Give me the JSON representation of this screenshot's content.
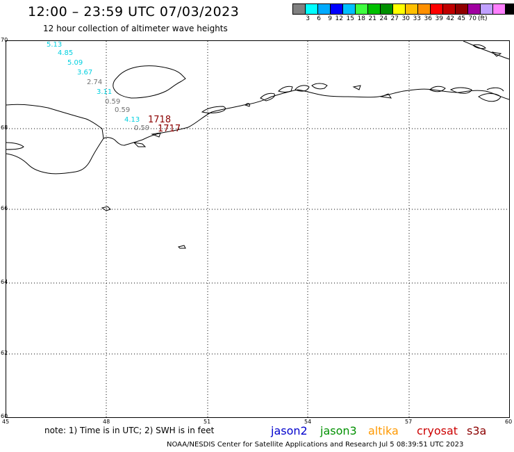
{
  "header": {
    "title": "12:00 – 23:59 UTC 07/03/2023",
    "subtitle": "12 hour collection of altimeter wave heights"
  },
  "colorbar": {
    "swatches": [
      "#808080",
      "#00ffff",
      "#00aaff",
      "#0000ff",
      "#00c0ff",
      "#40ff40",
      "#00c000",
      "#009000",
      "#ffff00",
      "#ffc000",
      "#ff9000",
      "#ff0000",
      "#c00000",
      "#900000",
      "#a000a0",
      "#c0a0ff",
      "#ff80ff",
      "#000000"
    ],
    "labels": [
      "3",
      "6",
      "9",
      "12",
      "15",
      "18",
      "21",
      "24",
      "27",
      "30",
      "33",
      "36",
      "39",
      "42",
      "45",
      "70"
    ],
    "unit": "(ft)"
  },
  "axes": {
    "lat_labels": [
      "70",
      "68",
      "66",
      "64",
      "62",
      "60"
    ],
    "lon_labels": [
      "45",
      "48",
      "51",
      "54",
      "57",
      "60"
    ]
  },
  "observations": [
    {
      "value": "5.13",
      "color": "#00d0e0"
    },
    {
      "value": "4.85",
      "color": "#00d0e0"
    },
    {
      "value": "5.09",
      "color": "#00d0e0"
    },
    {
      "value": "3.67",
      "color": "#00d0e0"
    },
    {
      "value": "2.74",
      "color": "#707070"
    },
    {
      "value": "3.11",
      "color": "#00d0e0"
    },
    {
      "value": "0.59",
      "color": "#707070"
    },
    {
      "value": "0.59",
      "color": "#707070"
    },
    {
      "value": "4.13",
      "color": "#00d0e0"
    },
    {
      "value": "1718",
      "color": "#8b0000"
    },
    {
      "value": "0.59",
      "color": "#707070"
    },
    {
      "value": "1717",
      "color": "#8b0000"
    }
  ],
  "note": "note: 1) Time is in UTC; 2) SWH is in feet",
  "missions": [
    {
      "name": "jason2",
      "color": "#0000cc"
    },
    {
      "name": "jason3",
      "color": "#009000"
    },
    {
      "name": "altika",
      "color": "#ff9900"
    },
    {
      "name": "cryosat",
      "color": "#cc0000"
    },
    {
      "name": "s3a",
      "color": "#8b0000"
    }
  ],
  "footer": "NOAA/NESDIS Center for Satellite Applications and Research    Jul  5 08:39:51 UTC 2023"
}
